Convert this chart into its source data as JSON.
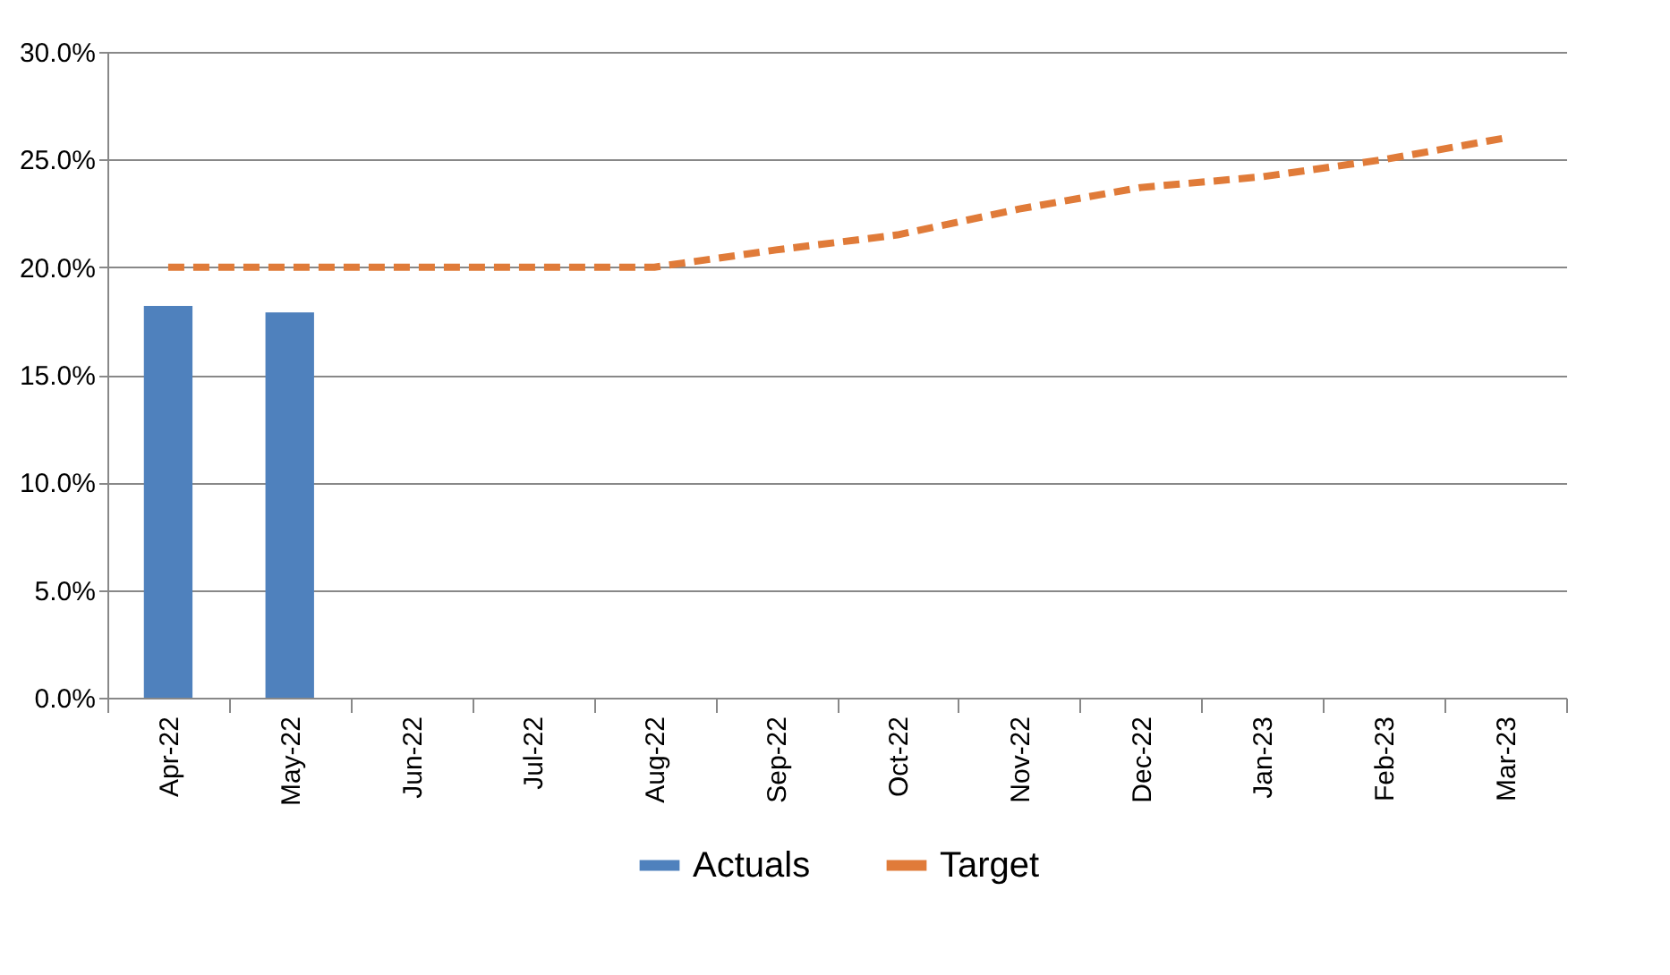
{
  "chart_data": {
    "type": "bar",
    "categories": [
      "Apr-22",
      "May-22",
      "Jun-22",
      "Jul-22",
      "Aug-22",
      "Sep-22",
      "Oct-22",
      "Nov-22",
      "Dec-22",
      "Jan-23",
      "Feb-23",
      "Mar-23"
    ],
    "series": [
      {
        "name": "Actuals",
        "color": "#4f81bd",
        "values": [
          18.2,
          17.9,
          null,
          null,
          null,
          null,
          null,
          null,
          null,
          null,
          null,
          null
        ]
      },
      {
        "name": "Target",
        "type": "line",
        "color": "#e07b39",
        "line_style": "dashed",
        "values": [
          20.0,
          20.0,
          20.0,
          20.0,
          20.0,
          20.8,
          21.5,
          22.7,
          23.7,
          24.2,
          25.0,
          26.0
        ]
      }
    ],
    "ylim": [
      0,
      30
    ],
    "yticks": [
      {
        "value": 0,
        "label": "0.0%"
      },
      {
        "value": 5,
        "label": "5.0%"
      },
      {
        "value": 10,
        "label": "10.0%"
      },
      {
        "value": 15,
        "label": "15.0%"
      },
      {
        "value": 20,
        "label": "20.0%"
      },
      {
        "value": 25,
        "label": "25.0%"
      },
      {
        "value": 30,
        "label": "30.0%"
      }
    ],
    "grid": "y",
    "legend": "bottom",
    "marker": "none"
  }
}
